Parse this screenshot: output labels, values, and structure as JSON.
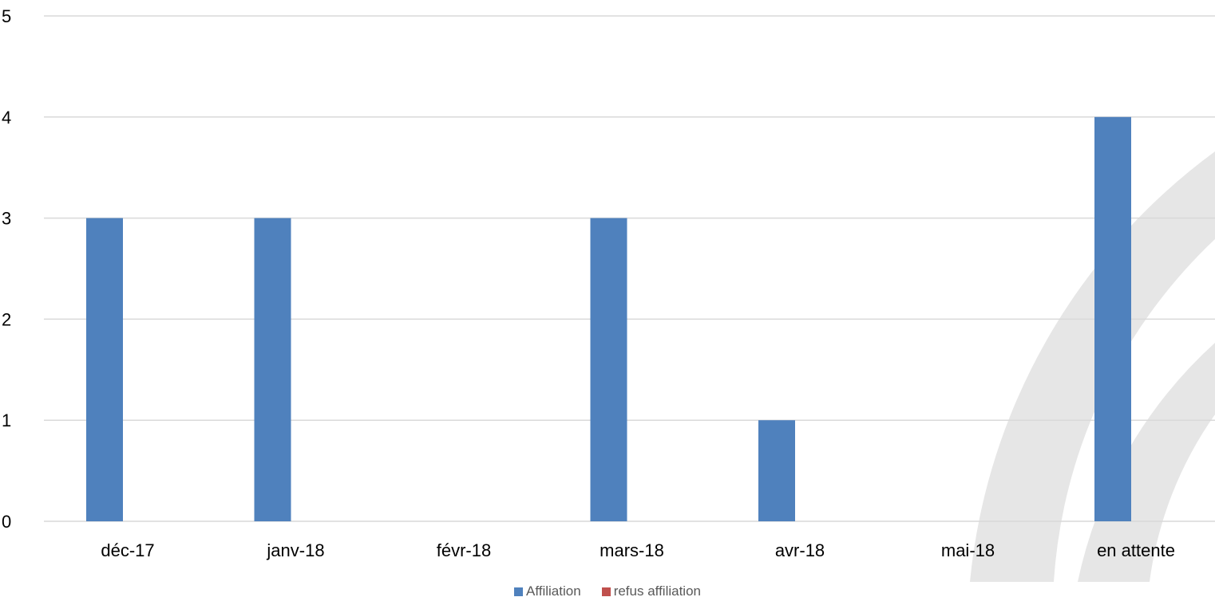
{
  "chart_data": {
    "type": "bar",
    "categories": [
      "déc-17",
      "janv-18",
      "févr-18",
      "mars-18",
      "avr-18",
      "mai-18",
      "en attente"
    ],
    "series": [
      {
        "name": "Affiliation",
        "values": [
          3,
          3,
          0,
          3,
          1,
          0,
          4
        ],
        "color": "#4f81bd"
      },
      {
        "name": "refus affiliation",
        "values": [
          0,
          0,
          0,
          0,
          0,
          0,
          0
        ],
        "color": "#c0504d"
      }
    ],
    "yticks": [
      "0",
      "1",
      "2",
      "3",
      "4",
      "5"
    ],
    "ylim": [
      0,
      5
    ],
    "grid": true,
    "legend": "bottom"
  }
}
